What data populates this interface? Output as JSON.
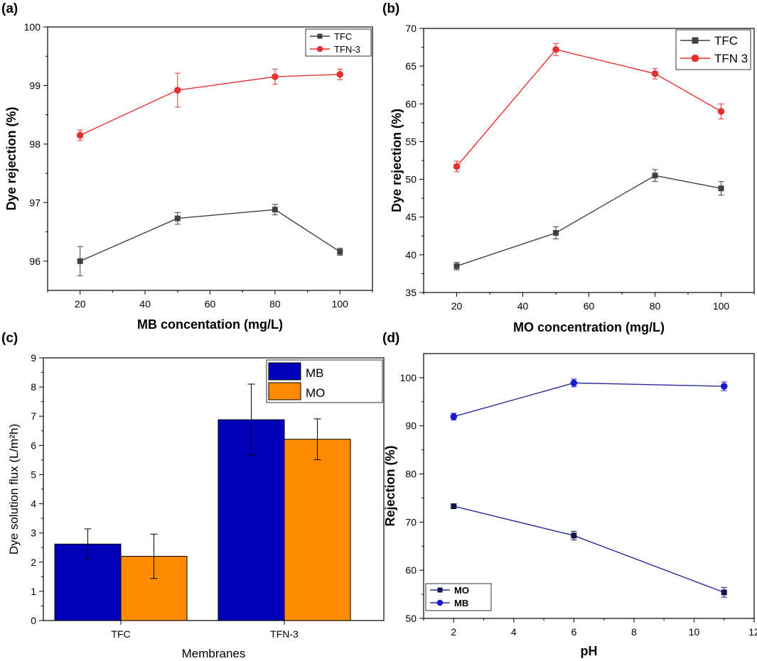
{
  "panels": {
    "a": "(a)",
    "b": "(b)",
    "c": "(c)",
    "d": "(d)"
  },
  "colors": {
    "tfc": "#404040",
    "tfn": "#e8312f",
    "mb_bar": "#0000b8",
    "mo_bar": "#ff8c00",
    "d_line": "#2a2a9c",
    "d_mo_marker": "#141450",
    "d_mb_marker": "#1a1acc"
  },
  "chart_data": [
    {
      "id": "a",
      "type": "line",
      "title": "",
      "xlabel": "MB concentation (mg/L)",
      "ylabel": "Dye rejection (%)",
      "xlim": [
        10,
        110
      ],
      "ylim": [
        95.5,
        100
      ],
      "xticks": [
        20,
        40,
        60,
        80,
        100
      ],
      "yticks": [
        96,
        97,
        98,
        99,
        100
      ],
      "legend_position": "top-right",
      "x": [
        20,
        50,
        80,
        100
      ],
      "series": [
        {
          "name": "TFC",
          "values": [
            96.0,
            96.73,
            96.88,
            96.16
          ],
          "errors": [
            0.25,
            0.1,
            0.09,
            0.06
          ],
          "marker": "square"
        },
        {
          "name": "TFN-3",
          "values": [
            98.15,
            98.92,
            99.15,
            99.19
          ],
          "errors": [
            0.09,
            0.29,
            0.13,
            0.09
          ],
          "marker": "circle"
        }
      ]
    },
    {
      "id": "b",
      "type": "line",
      "title": "",
      "xlabel": "MO concentration (mg/L)",
      "ylabel": "Dye rejection (%)",
      "xlim": [
        10,
        110
      ],
      "ylim": [
        35,
        70
      ],
      "xticks": [
        20,
        40,
        60,
        80,
        100
      ],
      "yticks": [
        35,
        40,
        45,
        50,
        55,
        60,
        65,
        70
      ],
      "legend_position": "top-right",
      "x": [
        20,
        50,
        80,
        100
      ],
      "series": [
        {
          "name": "TFC",
          "values": [
            38.5,
            42.9,
            50.5,
            48.8
          ],
          "errors": [
            0.5,
            0.8,
            0.8,
            0.9
          ],
          "marker": "square"
        },
        {
          "name": "TFN 3",
          "values": [
            51.7,
            67.2,
            64.0,
            59.0
          ],
          "errors": [
            0.7,
            0.8,
            0.7,
            1.0
          ],
          "marker": "circle"
        }
      ]
    },
    {
      "id": "c",
      "type": "bar",
      "title": "",
      "xlabel": "Membranes",
      "ylabel": "Dye solution flux (L/m²h)",
      "ylim": [
        0,
        9
      ],
      "yticks": [
        0,
        1,
        2,
        3,
        4,
        5,
        6,
        7,
        8,
        9
      ],
      "legend_position": "top-right",
      "categories": [
        "TFC",
        "TFN-3"
      ],
      "series": [
        {
          "name": "MB",
          "values": [
            2.62,
            6.88
          ],
          "errors": [
            0.52,
            1.22
          ]
        },
        {
          "name": "MO",
          "values": [
            2.2,
            6.21
          ],
          "errors": [
            0.76,
            0.7
          ]
        }
      ]
    },
    {
      "id": "d",
      "type": "line",
      "title": "",
      "xlabel": "pH",
      "ylabel": "Rejection (%)",
      "xlim": [
        1,
        12
      ],
      "ylim": [
        50,
        105
      ],
      "xticks": [
        2,
        4,
        6,
        8,
        10,
        12
      ],
      "yticks": [
        50,
        60,
        70,
        80,
        90,
        100
      ],
      "legend_position": "bottom-left",
      "x": [
        2,
        6,
        11
      ],
      "series": [
        {
          "name": "MO",
          "values": [
            73.3,
            67.2,
            55.4
          ],
          "errors": [
            0.5,
            0.9,
            1.0
          ],
          "marker": "square"
        },
        {
          "name": "MB",
          "values": [
            91.9,
            98.9,
            98.2
          ],
          "errors": [
            0.7,
            0.8,
            0.9
          ],
          "marker": "circle"
        }
      ]
    }
  ]
}
